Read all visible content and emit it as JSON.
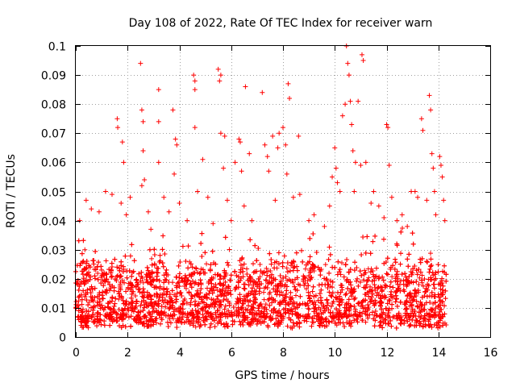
{
  "chart_data": {
    "type": "scatter",
    "title": "Day 108 of 2022, Rate Of TEC Index for receiver warn",
    "xlabel": "GPS time / hours",
    "ylabel": "ROTI / TECUs",
    "xlim": [
      0,
      16
    ],
    "ylim": [
      0,
      0.1
    ],
    "x_ticks": [
      "0",
      "2",
      "4",
      "6",
      "8",
      "10",
      "12",
      "14",
      "16"
    ],
    "y_ticks": [
      "0",
      "0.01",
      "0.02",
      "0.03",
      "0.04",
      "0.05",
      "0.06",
      "0.07",
      "0.08",
      "0.09",
      "0.1"
    ],
    "grid": true,
    "marker": "+",
    "color": "#ff0000",
    "series": [
      {
        "name": "ROTI",
        "x_range": [
          0,
          14.3
        ],
        "note": "dense cloud of several thousand points; bulk 0.003–0.03 TECUs, sparse outliers listed below",
        "outliers": [
          [
            0.15,
            0.04
          ],
          [
            0.35,
            0.03
          ],
          [
            0.4,
            0.047
          ],
          [
            0.6,
            0.044
          ],
          [
            0.9,
            0.043
          ],
          [
            1.15,
            0.05
          ],
          [
            1.4,
            0.049
          ],
          [
            1.6,
            0.075
          ],
          [
            1.62,
            0.072
          ],
          [
            1.8,
            0.067
          ],
          [
            1.85,
            0.06
          ],
          [
            1.75,
            0.046
          ],
          [
            1.95,
            0.042
          ],
          [
            2.1,
            0.048
          ],
          [
            2.5,
            0.094
          ],
          [
            2.55,
            0.078
          ],
          [
            2.6,
            0.074
          ],
          [
            2.6,
            0.064
          ],
          [
            2.65,
            0.054
          ],
          [
            2.55,
            0.052
          ],
          [
            2.8,
            0.043
          ],
          [
            2.9,
            0.037
          ],
          [
            3.2,
            0.085
          ],
          [
            3.2,
            0.074
          ],
          [
            3.2,
            0.06
          ],
          [
            3.4,
            0.048
          ],
          [
            3.6,
            0.043
          ],
          [
            3.75,
            0.078
          ],
          [
            3.85,
            0.068
          ],
          [
            3.9,
            0.066
          ],
          [
            3.8,
            0.056
          ],
          [
            4.0,
            0.046
          ],
          [
            4.3,
            0.04
          ],
          [
            4.55,
            0.09
          ],
          [
            4.6,
            0.088
          ],
          [
            4.6,
            0.085
          ],
          [
            4.6,
            0.072
          ],
          [
            4.7,
            0.05
          ],
          [
            4.9,
            0.061
          ],
          [
            5.1,
            0.048
          ],
          [
            5.3,
            0.039
          ],
          [
            5.5,
            0.092
          ],
          [
            5.6,
            0.09
          ],
          [
            5.55,
            0.088
          ],
          [
            5.6,
            0.07
          ],
          [
            5.75,
            0.069
          ],
          [
            5.7,
            0.058
          ],
          [
            5.85,
            0.047
          ],
          [
            6.0,
            0.04
          ],
          [
            6.15,
            0.06
          ],
          [
            6.3,
            0.068
          ],
          [
            6.35,
            0.067
          ],
          [
            6.4,
            0.057
          ],
          [
            6.5,
            0.045
          ],
          [
            6.55,
            0.086
          ],
          [
            6.7,
            0.063
          ],
          [
            6.8,
            0.04
          ],
          [
            7.2,
            0.084
          ],
          [
            7.3,
            0.066
          ],
          [
            7.4,
            0.062
          ],
          [
            7.45,
            0.057
          ],
          [
            7.6,
            0.069
          ],
          [
            7.7,
            0.047
          ],
          [
            7.8,
            0.065
          ],
          [
            7.85,
            0.07
          ],
          [
            8.0,
            0.072
          ],
          [
            8.1,
            0.066
          ],
          [
            8.15,
            0.056
          ],
          [
            8.2,
            0.087
          ],
          [
            8.25,
            0.082
          ],
          [
            8.4,
            0.048
          ],
          [
            8.6,
            0.069
          ],
          [
            8.65,
            0.049
          ],
          [
            9.0,
            0.04
          ],
          [
            9.2,
            0.042
          ],
          [
            9.6,
            0.038
          ],
          [
            9.8,
            0.045
          ],
          [
            9.9,
            0.055
          ],
          [
            10.0,
            0.065
          ],
          [
            10.05,
            0.058
          ],
          [
            10.1,
            0.053
          ],
          [
            10.2,
            0.05
          ],
          [
            10.3,
            0.076
          ],
          [
            10.4,
            0.08
          ],
          [
            10.45,
            0.1
          ],
          [
            10.5,
            0.094
          ],
          [
            10.55,
            0.09
          ],
          [
            10.6,
            0.081
          ],
          [
            10.65,
            0.073
          ],
          [
            10.7,
            0.064
          ],
          [
            10.75,
            0.05
          ],
          [
            10.8,
            0.06
          ],
          [
            10.9,
            0.081
          ],
          [
            11.0,
            0.059
          ],
          [
            11.05,
            0.097
          ],
          [
            11.1,
            0.095
          ],
          [
            11.2,
            0.06
          ],
          [
            11.4,
            0.046
          ],
          [
            11.5,
            0.05
          ],
          [
            11.7,
            0.045
          ],
          [
            11.9,
            0.041
          ],
          [
            12.0,
            0.073
          ],
          [
            12.05,
            0.072
          ],
          [
            12.1,
            0.059
          ],
          [
            12.2,
            0.048
          ],
          [
            12.4,
            0.04
          ],
          [
            12.6,
            0.042
          ],
          [
            12.8,
            0.038
          ],
          [
            12.95,
            0.05
          ],
          [
            13.1,
            0.05
          ],
          [
            13.2,
            0.048
          ],
          [
            13.35,
            0.075
          ],
          [
            13.4,
            0.071
          ],
          [
            13.55,
            0.047
          ],
          [
            13.65,
            0.083
          ],
          [
            13.7,
            0.078
          ],
          [
            13.75,
            0.063
          ],
          [
            13.8,
            0.058
          ],
          [
            13.85,
            0.05
          ],
          [
            13.9,
            0.042
          ],
          [
            14.05,
            0.062
          ],
          [
            14.1,
            0.059
          ],
          [
            14.15,
            0.055
          ],
          [
            14.2,
            0.047
          ],
          [
            14.25,
            0.04
          ]
        ]
      }
    ]
  }
}
